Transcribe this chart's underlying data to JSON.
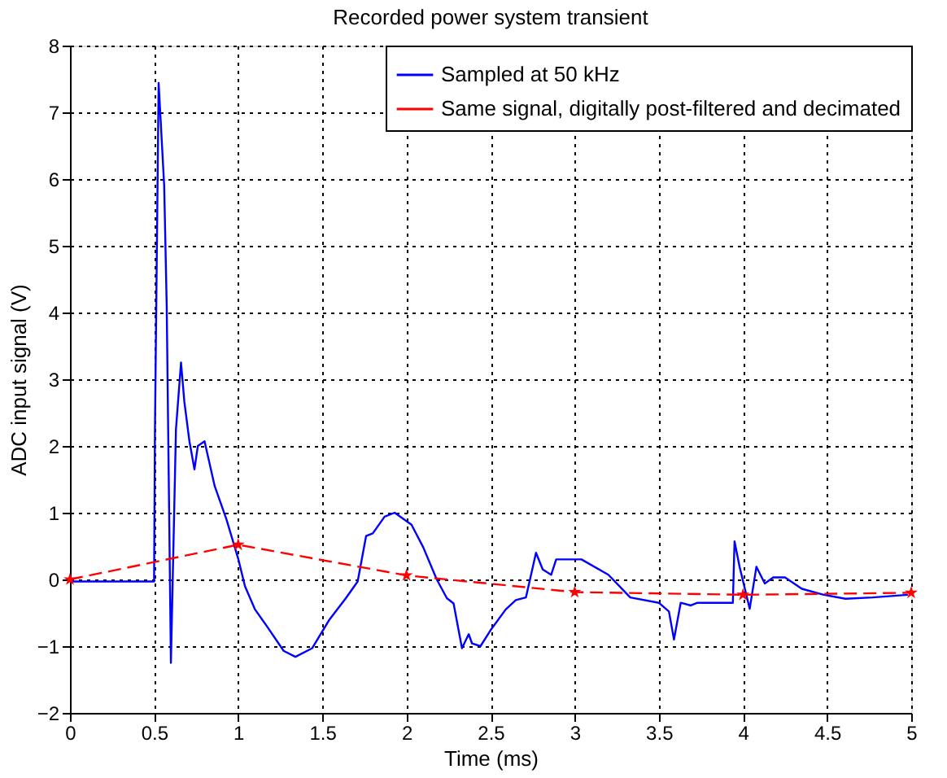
{
  "chart_data": {
    "type": "line",
    "title": "Recorded power system transient",
    "xlabel": "Time (ms)",
    "ylabel": "ADC input signal (V)",
    "xlim": [
      0,
      5
    ],
    "xticks": [
      0,
      0.5,
      1,
      1.5,
      2,
      2.5,
      3,
      3.5,
      4,
      4.5,
      5
    ],
    "ylim": [
      -2,
      8
    ],
    "yticks": [
      -2,
      -1,
      0,
      1,
      2,
      3,
      4,
      5,
      6,
      7,
      8
    ],
    "grid": true,
    "legend": "top right",
    "series": [
      {
        "name": "Sampled at 50 kHz",
        "color": "#0000ff",
        "marker": "none",
        "line_style": "solid",
        "x": [
          0,
          0.25,
          0.5,
          0.505,
          0.527,
          0.56,
          0.575,
          0.6,
          0.63,
          0.66,
          0.68,
          0.71,
          0.74,
          0.76,
          0.8,
          0.86,
          0.93,
          1.0,
          1.04,
          1.1,
          1.17,
          1.27,
          1.34,
          1.44,
          1.54,
          1.64,
          1.71,
          1.76,
          1.8,
          1.87,
          1.93,
          2.03,
          2.1,
          2.18,
          2.24,
          2.28,
          2.33,
          2.37,
          2.39,
          2.44,
          2.5,
          2.59,
          2.65,
          2.71,
          2.77,
          2.81,
          2.86,
          2.89,
          3.04,
          3.2,
          3.33,
          3.5,
          3.56,
          3.59,
          3.63,
          3.69,
          3.73,
          3.94,
          3.95,
          3.98,
          4.04,
          4.08,
          4.13,
          4.18,
          4.25,
          4.35,
          4.48,
          4.61,
          4.77,
          4.98
        ],
        "values": [
          -0.03,
          -0.03,
          -0.03,
          2.2,
          7.44,
          5.9,
          4.1,
          -1.25,
          2.25,
          3.25,
          2.66,
          2.07,
          1.65,
          2.0,
          2.07,
          1.4,
          0.9,
          0.31,
          -0.1,
          -0.45,
          -0.7,
          -1.07,
          -1.16,
          -1.03,
          -0.61,
          -0.28,
          -0.03,
          0.65,
          0.69,
          0.94,
          1.0,
          0.82,
          0.48,
          0,
          -0.28,
          -0.36,
          -1.03,
          -0.82,
          -0.96,
          -1.0,
          -0.76,
          -0.45,
          -0.31,
          -0.27,
          0.4,
          0.15,
          0.07,
          0.3,
          0.3,
          0.07,
          -0.27,
          -0.35,
          -0.48,
          -0.9,
          -0.35,
          -0.39,
          -0.35,
          -0.35,
          0.57,
          0.19,
          -0.44,
          0.19,
          -0.06,
          0.03,
          0.03,
          -0.14,
          -0.23,
          -0.29,
          -0.27,
          -0.23
        ]
      },
      {
        "name": "Same signal, digitally post-filtered and decimated",
        "color": "#ff0000",
        "marker": "star",
        "line_style": "dashed",
        "x": [
          0,
          1,
          2,
          3,
          4,
          5
        ],
        "values": [
          0,
          0.52,
          0.06,
          -0.19,
          -0.23,
          -0.2
        ]
      }
    ]
  }
}
